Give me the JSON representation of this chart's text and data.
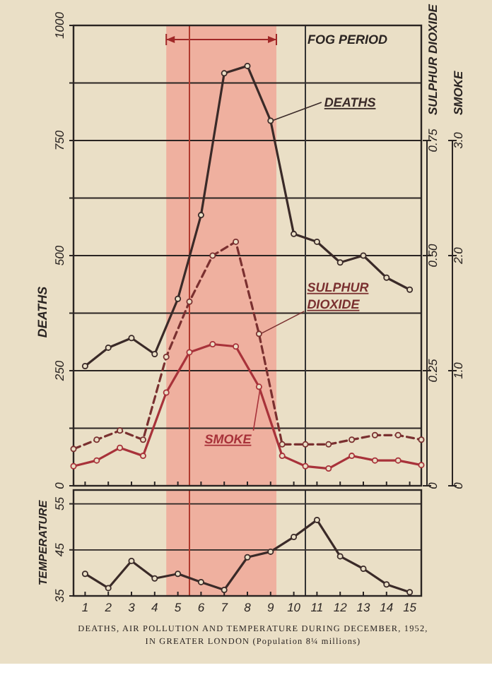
{
  "chart_data": [
    {
      "type": "line",
      "ylabel": "DEATHS",
      "y2label": "SULPHUR DIOXIDE",
      "y3label": "SMOKE",
      "xlim": [
        0.5,
        15.5
      ],
      "xticks": [
        {
          "value": 1,
          "label": null
        },
        {
          "value": 2,
          "label": null
        },
        {
          "value": 3,
          "label": null
        },
        {
          "value": 4,
          "label": null
        },
        {
          "value": 5,
          "label": null
        },
        {
          "value": 6,
          "label": null
        },
        {
          "value": 7,
          "label": null
        },
        {
          "value": 8,
          "label": null
        },
        {
          "value": 9,
          "label": null
        },
        {
          "value": 10,
          "label": null
        },
        {
          "value": 11,
          "label": null
        },
        {
          "value": 12,
          "label": null
        },
        {
          "value": 13,
          "label": null
        },
        {
          "value": 14,
          "label": null
        },
        {
          "value": 15,
          "label": null
        }
      ],
      "ylim": [
        0,
        1000
      ],
      "yticks": [
        0,
        {
          "value": 125,
          "label": null
        },
        250,
        {
          "value": 375,
          "label": null
        },
        500,
        {
          "value": 625,
          "label": null
        },
        750,
        {
          "value": 875,
          "label": null
        },
        1000
      ],
      "y2lim": [
        0,
        1
      ],
      "y2ticks": [
        0,
        0.25,
        {
          "value": 0.5,
          "label": "0.50"
        },
        0.75
      ],
      "y3lim": [
        0,
        4
      ],
      "y3ticks": [
        0,
        {
          "value": 1,
          "label": "1.0"
        },
        {
          "value": 2,
          "label": "2.0"
        },
        {
          "value": 3,
          "label": "3.0"
        }
      ],
      "tick_labels": "y",
      "grid": "y",
      "legend": false,
      "marker": "circle",
      "series": [
        {
          "name": "DEATHS",
          "color": "#3a2a28",
          "line_style": "solid",
          "x": [
            1,
            2,
            3,
            4,
            5,
            6,
            7,
            8,
            9,
            10,
            11,
            12,
            13,
            14,
            15
          ],
          "values": [
            260,
            300,
            321,
            286,
            406,
            588,
            896,
            912,
            793,
            547,
            530,
            485,
            500,
            452,
            426
          ]
        },
        {
          "name": "SULPHUR DIOXIDE",
          "color": "#7a3030",
          "line_style": "dashed",
          "axis": "y2",
          "x": [
            0.5,
            1.5,
            2.5,
            3.5,
            4.5,
            5.5,
            6.5,
            7.5,
            8.5,
            9.5,
            10.5,
            11.5,
            12.5,
            13.5,
            14.5,
            15.5
          ],
          "values": [
            0.08,
            0.1,
            0.12,
            0.1,
            0.28,
            0.4,
            0.5,
            0.53,
            0.33,
            0.09,
            0.09,
            0.09,
            0.1,
            0.11,
            0.11,
            0.1
          ]
        },
        {
          "name": "SMOKE",
          "color": "#a8323a",
          "line_style": "solid",
          "axis": "y3",
          "x": [
            0.5,
            1.5,
            2.5,
            3.5,
            4.5,
            5.5,
            6.5,
            7.5,
            8.5,
            9.5,
            10.5,
            11.5,
            12.5,
            13.5,
            14.5,
            15.5
          ],
          "values": [
            0.17,
            0.22,
            0.33,
            0.26,
            0.81,
            1.16,
            1.23,
            1.21,
            0.86,
            0.26,
            0.17,
            0.15,
            0.26,
            0.22,
            0.22,
            0.18
          ]
        }
      ],
      "bands": [
        {
          "axis": "x",
          "from": 4.5,
          "to": 9.25,
          "label": "FOG PERIOD",
          "color": "#f0a898"
        }
      ],
      "ref_lines": [
        {
          "axis": "x",
          "value": 5.5,
          "color": "#b03a2e"
        },
        {
          "axis": "x",
          "value": 10.5,
          "color": "#333333"
        }
      ]
    },
    {
      "type": "line",
      "ylabel": "TEMPERATURE",
      "title": "DEATHS, AIR POLLUTION AND TEMPERATURE DURING DECEMBER, 1952, IN GREATER LONDON (Population 8¼ millions)",
      "xlim": [
        0.5,
        15.5
      ],
      "xticks": [
        1,
        2,
        3,
        4,
        5,
        6,
        7,
        8,
        9,
        10,
        11,
        12,
        13,
        14,
        15
      ],
      "ylim": [
        35,
        58
      ],
      "yticks": [
        35,
        45,
        55
      ],
      "grid": "y",
      "legend": false,
      "marker": "circle",
      "series": [
        {
          "color": "#3a2a28",
          "line_style": "solid",
          "x": [
            1,
            2,
            3,
            4,
            5,
            6,
            7,
            8,
            9,
            10,
            11,
            12,
            13,
            14,
            15
          ],
          "values": [
            39.8,
            36.7,
            42.6,
            38.8,
            39.8,
            38,
            36.3,
            43.4,
            44.6,
            47.8,
            51.5,
            43.6,
            40.9,
            37.5,
            35.8
          ]
        }
      ],
      "bands": [
        {
          "axis": "x",
          "from": 4.5,
          "to": 9.25,
          "color": "#f0a898"
        }
      ],
      "ref_lines": [
        {
          "axis": "x",
          "value": 5.5,
          "color": "#b03a2e"
        },
        {
          "axis": "x",
          "value": 10.5,
          "color": "#333333"
        }
      ]
    }
  ]
}
